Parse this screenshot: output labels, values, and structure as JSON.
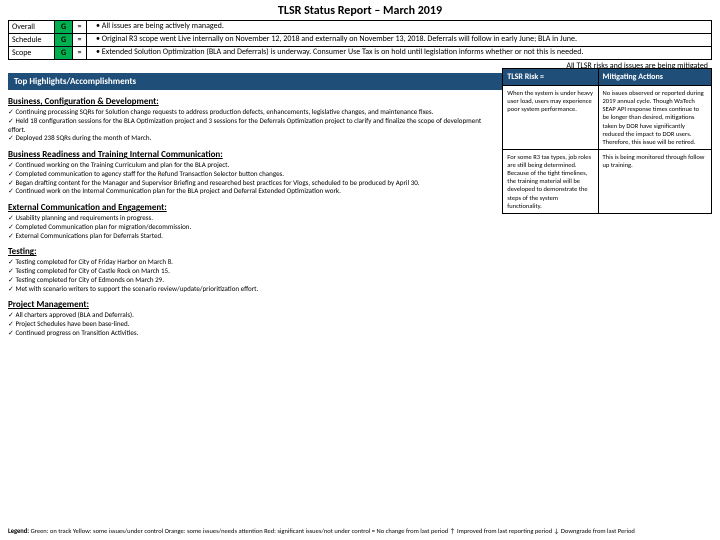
{
  "title": "TLSR Status Report – March 2019",
  "status_rows": [
    {
      "label": "Overall",
      "g": "G",
      "eq": "=",
      "bullets": [
        "All issues are being actively managed."
      ]
    },
    {
      "label": "Schedule",
      "g": "G",
      "eq": "=",
      "bullets": [
        "Original R3 scope went Live internally on November 12, 2018 and externally on November 13, 2018.  Deferrals will follow in early June; BLA in June."
      ]
    },
    {
      "label": "Scope",
      "g": "G",
      "eq": "=",
      "bullets": [
        "Extended Solution Optimization (BLA and Deferrals) is underway. Consumer Use Tax is on hold until legislation informs whether or not this is needed."
      ]
    }
  ],
  "mitigate_line": "All TLSR risks and issues are being mitigated",
  "highlights_bar": "Top Highlights/Accomplishments",
  "sections": [
    {
      "h": "Business, Configuration & Development:",
      "items": [
        "Continuing processing SQRs for Solution change requests to address production defects, enhancements, legislative changes, and maintenance fixes.",
        "Held 18 configuration sessions for the BLA Optimization project and 3 sessions for the Deferrals Optimization project to clarify and finalize the scope of development effort.",
        "Deployed 238 SQRs during the month of March."
      ]
    },
    {
      "h": "Business Readiness and Training Internal Communication:",
      "items": [
        "Continued working on the Training Curriculum and plan for the BLA project.",
        "Completed communication to agency staff for the Refund Transaction Selector button changes.",
        "Began drafting content for the Manager and Supervisor Briefing and researched best practices for Vlogs, scheduled to be produced by April 30.",
        "Continued work on the Internal Communication plan for the BLA project and Deferral Extended Optimization work."
      ]
    },
    {
      "h": "External Communication and Engagement:",
      "items": [
        "Usability planning and requirements in progress.",
        "Completed Communication plan for migration/decommission.",
        "External Communications plan for Deferrals Started."
      ]
    },
    {
      "h": "Testing:",
      "items": [
        "Testing completed for City of Friday Harbor on March 8.",
        "Testing completed for City of Castle Rock on March 15.",
        "Testing completed for City of Edmonds on March 29.",
        "Met with scenario writers to support the scenario review/update/prioritization effort."
      ]
    },
    {
      "h": "Project Management:",
      "items": [
        "All charters approved (BLA and Deferrals).",
        "Project Schedules have been base-lined.",
        "Continued progress on Transition Activities."
      ]
    }
  ],
  "risk_head": {
    "c1": "TLSR Risk =",
    "c2": "Mitigating Actions"
  },
  "risk_rows": [
    {
      "r": "When the system is under heavy user load, users may experience poor system performance.",
      "m": "No issues observed or reported during 2019 annual cycle. Though WaTech SEAP API response times continue to be longer than desired, mitigations taken by DOR have significantly reduced the impact to DOR users.  Therefore, this issue will be retired."
    },
    {
      "r": "For some R3 tax types, job roles are still being determined.  Because of the tight timelines, the training material will be developed to demonstrate the steps of the system functionality.",
      "m": "This is being monitored through follow up training."
    }
  ],
  "legend": {
    "line1": "Legend:  Green: on track Yellow: some issues/under control Orange: some issues/needs attention  Red: significant issues/not under control  =  No change from last period  ↑  Improved from last reporting period  ↓ Downgrade from last Period"
  }
}
